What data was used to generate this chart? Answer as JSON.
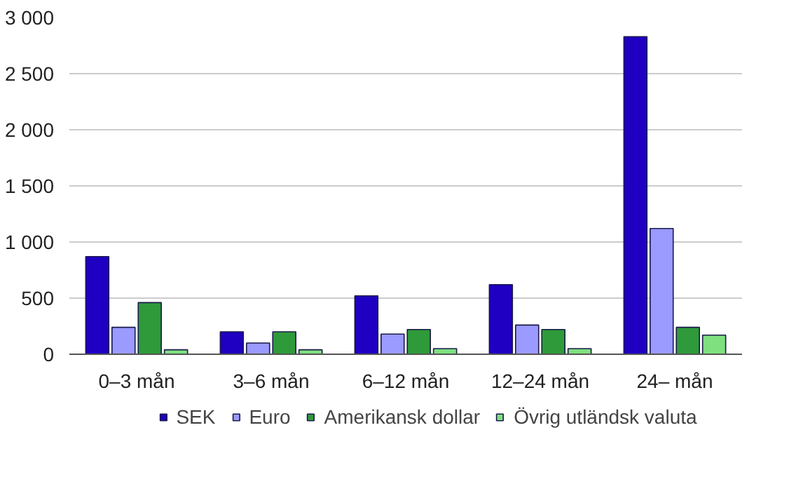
{
  "chart_data": {
    "type": "bar",
    "categories": [
      "0–3 mån",
      "3–6 mån",
      "6–12 mån",
      "12–24 mån",
      "24– mån"
    ],
    "series": [
      {
        "name": "SEK",
        "color": "#1f00c2",
        "values": [
          870,
          200,
          520,
          620,
          2830
        ]
      },
      {
        "name": "Euro",
        "color": "#9a9aff",
        "values": [
          240,
          100,
          180,
          260,
          1120
        ]
      },
      {
        "name": "Amerikansk dollar",
        "color": "#2e9a3a",
        "values": [
          460,
          200,
          220,
          220,
          240
        ]
      },
      {
        "name": "Övrig utländsk valuta",
        "color": "#7fe07f",
        "values": [
          40,
          40,
          50,
          50,
          170
        ]
      }
    ],
    "ylim": [
      0,
      3000
    ],
    "yticks": [
      {
        "value": 0,
        "label": "0"
      },
      {
        "value": 500,
        "label": "500"
      },
      {
        "value": 1000,
        "label": "1 000"
      },
      {
        "value": 1500,
        "label": "1 500"
      },
      {
        "value": 2000,
        "label": "2 000"
      },
      {
        "value": 2500,
        "label": "2 500"
      },
      {
        "value": 3000,
        "label": "3 000"
      }
    ],
    "grid": "y",
    "legend": "bottom"
  }
}
